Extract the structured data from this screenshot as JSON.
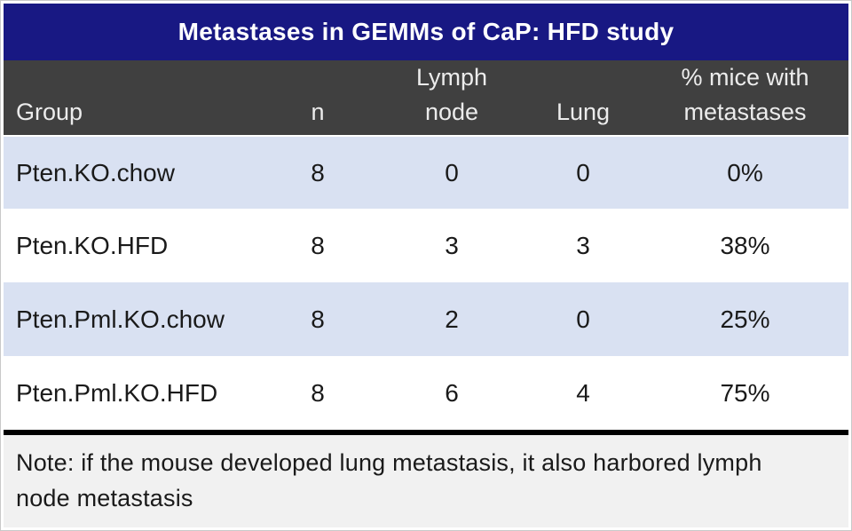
{
  "title": "Metastases in GEMMs of CaP: HFD study",
  "colors": {
    "title_bg": "#181883",
    "header_bg": "#404040",
    "band_row_bg": "#d9e1f2",
    "plain_row_bg": "#ffffff",
    "note_bg": "#f1f1f1",
    "separator": "#000000",
    "title_text": "#ffffff",
    "header_text": "#ececec",
    "body_text": "#1a1a1a"
  },
  "table": {
    "columns": [
      {
        "key": "group",
        "label": "Group"
      },
      {
        "key": "n",
        "label": "n"
      },
      {
        "key": "lymph_node",
        "label": "Lymph\nnode"
      },
      {
        "key": "lung",
        "label": "Lung"
      },
      {
        "key": "pct_metastases",
        "label": "% mice with\nmetastases"
      }
    ],
    "rows": [
      {
        "group": "Pten.KO.chow",
        "n": "8",
        "lymph_node": "0",
        "lung": "0",
        "pct_metastases": "0%"
      },
      {
        "group": "Pten.KO.HFD",
        "n": "8",
        "lymph_node": "3",
        "lung": "3",
        "pct_metastases": "38%"
      },
      {
        "group": "Pten.Pml.KO.chow",
        "n": "8",
        "lymph_node": "2",
        "lung": "0",
        "pct_metastases": "25%"
      },
      {
        "group": "Pten.Pml.KO.HFD",
        "n": "8",
        "lymph_node": "6",
        "lung": "4",
        "pct_metastases": "75%"
      }
    ]
  },
  "note": "Note: if the mouse developed lung metastasis, it also harbored lymph node metastasis",
  "chart_data": {
    "type": "table",
    "title": "Metastases in GEMMs of CaP: HFD study",
    "columns": [
      "Group",
      "n",
      "Lymph node",
      "Lung",
      "% mice with metastases"
    ],
    "rows": [
      [
        "Pten.KO.chow",
        8,
        0,
        0,
        "0%"
      ],
      [
        "Pten.KO.HFD",
        8,
        3,
        3,
        "38%"
      ],
      [
        "Pten.Pml.KO.chow",
        8,
        2,
        0,
        "25%"
      ],
      [
        "Pten.Pml.KO.HFD",
        8,
        6,
        4,
        "75%"
      ]
    ],
    "note": "Note: if the mouse developed lung metastasis, it also harbored lymph node metastasis"
  }
}
